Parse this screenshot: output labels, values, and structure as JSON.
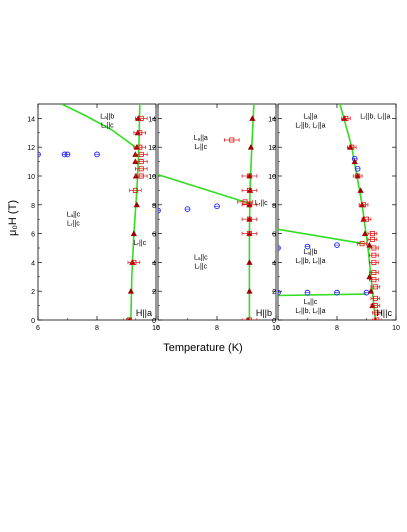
{
  "figure": {
    "ylabel": "μ₀H (T)",
    "xlabel": "Temperature (K)"
  },
  "chart_data": [
    {
      "type": "scatter",
      "field_label": "H||a",
      "xlim": [
        6,
        10
      ],
      "ylim": [
        0,
        15
      ],
      "xticks": [
        "6",
        "8",
        "10"
      ],
      "yticks": [
        "0",
        "2",
        "4",
        "6",
        "8",
        "10",
        "12",
        "14"
      ],
      "region_labels": [
        {
          "line1": "Lₐ||b",
          "line2": "Lᵣ||c",
          "x": 8.35,
          "y": 14.0
        },
        {
          "line1": "Lₐ||c",
          "line2": "Lᵣ||c",
          "x": 7.2,
          "y": 7.2
        },
        {
          "line1": "Lᵣ||c",
          "line2": "",
          "x": 9.45,
          "y": 5.2
        }
      ],
      "boundaries": [
        {
          "x": [
            6.8,
            7.6,
            8.5,
            9.3
          ],
          "y": [
            15.0,
            14.2,
            13.2,
            12.0
          ]
        },
        {
          "x": [
            9.45,
            9.42,
            9.35,
            9.25,
            9.18,
            9.15
          ],
          "y": [
            15.0,
            12.0,
            9.0,
            6.0,
            3.0,
            0.0
          ]
        }
      ],
      "series": [
        {
          "marker": "circle",
          "color": "#2020ff",
          "points": [
            [
              6.0,
              11.5
            ],
            [
              6.9,
              11.5
            ],
            [
              7.0,
              11.5
            ],
            [
              8.0,
              11.5
            ]
          ]
        },
        {
          "marker": "triangle",
          "color": "#9b0000",
          "points": [
            [
              9.4,
              14.0
            ],
            [
              9.38,
              13.0
            ],
            [
              9.35,
              12.0
            ],
            [
              9.3,
              11.5
            ],
            [
              9.3,
              11.0
            ],
            [
              9.32,
              10.0
            ],
            [
              9.35,
              8.0
            ],
            [
              9.25,
              6.0
            ],
            [
              9.2,
              4.0
            ],
            [
              9.15,
              2.0
            ],
            [
              9.1,
              0.0
            ]
          ]
        },
        {
          "marker": "square",
          "color": "#e01010",
          "xerr": 0.2,
          "points": [
            [
              9.5,
              14.0
            ],
            [
              9.45,
              13.0
            ],
            [
              9.45,
              12.0
            ],
            [
              9.5,
              11.5
            ],
            [
              9.5,
              11.0
            ],
            [
              9.5,
              10.5
            ],
            [
              9.5,
              10.0
            ],
            [
              9.3,
              9.0
            ],
            [
              9.25,
              4.0
            ],
            [
              9.1,
              0.0
            ]
          ]
        }
      ]
    },
    {
      "type": "scatter",
      "field_label": "H||b",
      "xlim": [
        6,
        10
      ],
      "ylim": [
        0,
        15
      ],
      "xticks": [
        "6",
        "8",
        "10"
      ],
      "yticks": [
        "0",
        "2",
        "4",
        "6",
        "8",
        "10",
        "12",
        "14"
      ],
      "region_labels": [
        {
          "line1": "Lₐ||a",
          "line2": "Lᵣ||c",
          "x": 7.45,
          "y": 12.5
        },
        {
          "line1": "Lᵣ||c",
          "line2": "",
          "x": 9.5,
          "y": 8.0
        },
        {
          "line1": "Lₐ||c",
          "line2": "Lᵣ||c",
          "x": 7.45,
          "y": 4.2
        }
      ],
      "boundaries": [
        {
          "x": [
            6.0,
            9.1
          ],
          "y": [
            10.1,
            8.1
          ]
        },
        {
          "x": [
            9.25,
            9.18,
            9.12,
            9.1,
            9.1
          ],
          "y": [
            15.0,
            12.0,
            9.0,
            6.0,
            0.0
          ]
        }
      ],
      "series": [
        {
          "marker": "circle",
          "color": "#2020ff",
          "points": [
            [
              6.0,
              7.6
            ],
            [
              7.0,
              7.7
            ],
            [
              8.0,
              7.9
            ]
          ]
        },
        {
          "marker": "triangle",
          "color": "#9b0000",
          "points": [
            [
              9.2,
              14.0
            ],
            [
              9.15,
              12.0
            ],
            [
              9.1,
              10.0
            ],
            [
              9.12,
              9.0
            ],
            [
              9.1,
              8.0
            ],
            [
              9.1,
              7.0
            ],
            [
              9.1,
              6.0
            ],
            [
              9.1,
              4.0
            ],
            [
              9.1,
              2.0
            ],
            [
              9.05,
              0.0
            ]
          ]
        },
        {
          "marker": "square",
          "color": "#e01010",
          "xerr": 0.25,
          "points": [
            [
              8.5,
              12.5
            ],
            [
              9.1,
              10.0
            ],
            [
              9.1,
              9.0
            ],
            [
              8.95,
              8.2
            ],
            [
              9.1,
              8.0
            ],
            [
              9.1,
              7.0
            ],
            [
              9.1,
              6.0
            ],
            [
              9.1,
              0.0
            ]
          ]
        }
      ]
    },
    {
      "type": "scatter",
      "field_label": "H||c",
      "xlim": [
        6,
        10
      ],
      "ylim": [
        0,
        15
      ],
      "xticks": [
        "6",
        "8",
        "10"
      ],
      "yticks": [
        "0",
        "2",
        "4",
        "6",
        "8",
        "10",
        "12",
        "14"
      ],
      "region_labels": [
        {
          "line1": "Lₐ||a",
          "line2": "Lᵣ||b, Lᵣ||a",
          "x": 7.1,
          "y": 14.0
        },
        {
          "line1": "Lᵣ||b, Lᵣ||a",
          "line2": "",
          "x": 9.3,
          "y": 14.0
        },
        {
          "line1": "Lₐ||b",
          "line2": "Lᵣ||b, Lᵣ||a",
          "x": 7.1,
          "y": 4.6
        },
        {
          "line1": "Lₐ||c",
          "line2": "Lᵣ||b, Lᵣ||a",
          "x": 7.1,
          "y": 1.1
        }
      ],
      "boundaries": [
        {
          "x": [
            6.0,
            8.9
          ],
          "y": [
            6.3,
            5.3
          ]
        },
        {
          "x": [
            6.0,
            9.0
          ],
          "y": [
            1.7,
            1.8
          ]
        },
        {
          "x": [
            8.1,
            8.5,
            8.85,
            9.05,
            9.2,
            9.3
          ],
          "y": [
            15.0,
            12.0,
            8.0,
            5.0,
            2.0,
            0.0
          ]
        }
      ],
      "series": [
        {
          "marker": "circle",
          "color": "#2020ff",
          "points": [
            [
              6.0,
              5.0
            ],
            [
              7.0,
              5.1
            ],
            [
              8.0,
              5.2
            ],
            [
              6.0,
              1.9
            ],
            [
              7.0,
              1.9
            ],
            [
              8.0,
              1.9
            ],
            [
              8.6,
              11.2
            ],
            [
              8.7,
              10.5
            ],
            [
              9.0,
              1.9
            ]
          ]
        },
        {
          "marker": "triangle",
          "color": "#9b0000",
          "points": [
            [
              8.25,
              14.0
            ],
            [
              8.45,
              12.0
            ],
            [
              8.6,
              11.0
            ],
            [
              8.7,
              10.0
            ],
            [
              8.8,
              9.0
            ],
            [
              8.85,
              8.0
            ],
            [
              8.9,
              7.0
            ],
            [
              8.95,
              6.0
            ],
            [
              9.1,
              5.2
            ],
            [
              9.1,
              3.0
            ],
            [
              9.15,
              2.0
            ],
            [
              9.2,
              1.0
            ],
            [
              9.3,
              0.0
            ]
          ]
        },
        {
          "marker": "square",
          "color": "#e01010",
          "xerr": 0.15,
          "points": [
            [
              8.3,
              14.0
            ],
            [
              8.5,
              12.0
            ],
            [
              8.7,
              10.0
            ],
            [
              8.9,
              8.0
            ],
            [
              9.0,
              7.0
            ],
            [
              9.2,
              6.0
            ],
            [
              9.2,
              5.6
            ],
            [
              8.85,
              5.3
            ],
            [
              9.25,
              5.0
            ],
            [
              9.25,
              4.5
            ],
            [
              9.25,
              4.0
            ],
            [
              9.25,
              3.3
            ],
            [
              9.25,
              2.8
            ],
            [
              9.3,
              2.3
            ],
            [
              9.3,
              1.5
            ],
            [
              9.3,
              1.0
            ],
            [
              9.35,
              0.5
            ],
            [
              9.35,
              0.0
            ]
          ]
        }
      ]
    }
  ]
}
